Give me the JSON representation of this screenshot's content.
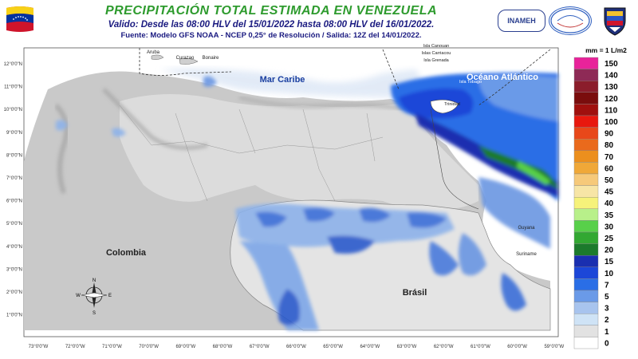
{
  "header": {
    "title": "PRECIPITACIÓN TOTAL ESTIMADA EN VENEZUELA",
    "subtitle": "Valido: Desde las 08:00 HLV del 15/01/2022 hasta 08:00 HLV del 16/01/2022.",
    "source": "Fuente: Modelo GFS NOAA - NCEP 0,25° de Resolución / Salida: 12Z del 14/01/2022.",
    "logo_inameh": "INAMEH"
  },
  "map": {
    "labels": {
      "mar_caribe": "Mar Caribe",
      "oceano": "Océano Atlántico",
      "colombia": "Colombia",
      "brasil": "Brásil",
      "aruba": "Aruba",
      "curazao": "Curazao",
      "bonaire": "Bonaire",
      "isla_canouan": "Isla Canouan",
      "islas_carriacou": "Islas Carriacou",
      "isla_grenada": "Isla Grenada",
      "isla_tobago": "Isla Tobago",
      "trinidad": "Trinidad",
      "guyana": "Guyana",
      "suriname": "Suriname"
    },
    "lat_labels": [
      "12°0'0\"N",
      "11°0'0\"N",
      "10°0'0\"N",
      "9°0'0\"N",
      "8°0'0\"N",
      "7°0'0\"N",
      "6°0'0\"N",
      "5°0'0\"N",
      "4°0'0\"N",
      "3°0'0\"N",
      "2°0'0\"N",
      "1°0'0\"N"
    ],
    "lon_labels": [
      "73°0'0\"W",
      "72°0'0\"W",
      "71°0'0\"W",
      "70°0'0\"W",
      "69°0'0\"W",
      "68°0'0\"W",
      "67°0'0\"W",
      "66°0'0\"W",
      "65°0'0\"W",
      "64°0'0\"W",
      "63°0'0\"W",
      "62°0'0\"W",
      "61°0'0\"W",
      "60°0'0\"W",
      "59°0'0\"W"
    ],
    "compass": {
      "n": "N",
      "s": "S",
      "e": "E",
      "w": "W"
    }
  },
  "legend": {
    "title": "mm = 1 L/m2",
    "items": [
      {
        "label": "150",
        "color": "#e8239a"
      },
      {
        "label": "140",
        "color": "#8e2a56"
      },
      {
        "label": "130",
        "color": "#8b1d2b"
      },
      {
        "label": "120",
        "color": "#7a0d0d"
      },
      {
        "label": "110",
        "color": "#a0100e"
      },
      {
        "label": "100",
        "color": "#e8180e"
      },
      {
        "label": "90",
        "color": "#e8481a"
      },
      {
        "label": "80",
        "color": "#ea6a1c"
      },
      {
        "label": "70",
        "color": "#ec8f1e"
      },
      {
        "label": "60",
        "color": "#f0a838"
      },
      {
        "label": "50",
        "color": "#f6c97a"
      },
      {
        "label": "45",
        "color": "#f7e5a6"
      },
      {
        "label": "40",
        "color": "#f6f27a"
      },
      {
        "label": "35",
        "color": "#b8f08a"
      },
      {
        "label": "30",
        "color": "#58d04a"
      },
      {
        "label": "25",
        "color": "#32a832"
      },
      {
        "label": "20",
        "color": "#1c7a2c"
      },
      {
        "label": "15",
        "color": "#1a2fb0"
      },
      {
        "label": "10",
        "color": "#1c47d8"
      },
      {
        "label": "7",
        "color": "#2a6ee6"
      },
      {
        "label": "5",
        "color": "#6a9ae8"
      },
      {
        "label": "3",
        "color": "#a8c4ee"
      },
      {
        "label": "2",
        "color": "#cfe3f6"
      },
      {
        "label": "1",
        "color": "#e2e2e2"
      },
      {
        "label": "0",
        "color": "#ffffff"
      }
    ]
  }
}
